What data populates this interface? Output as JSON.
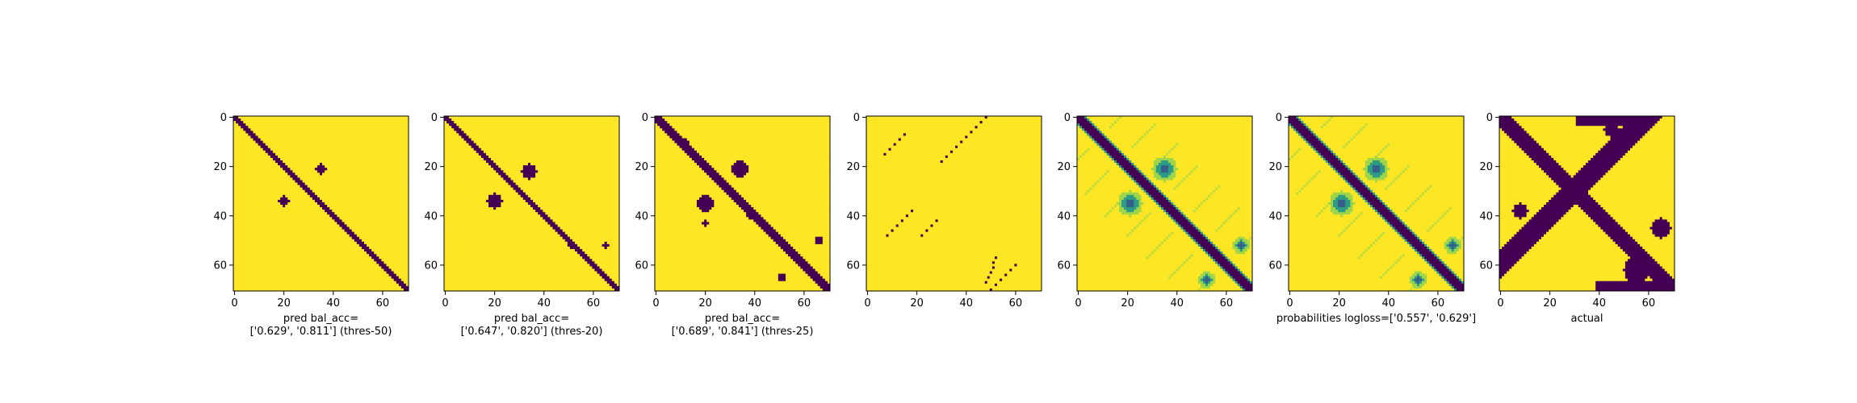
{
  "colors": {
    "background": "#ffffff",
    "colormap": "viridis",
    "low": "#440154",
    "high": "#fde725",
    "axes": "#000000"
  },
  "chart_data": [
    {
      "type": "heatmap",
      "colormap": "viridis",
      "grid": false,
      "matrix_size": 71,
      "xticks": [
        0,
        20,
        40,
        60
      ],
      "yticks": [
        0,
        20,
        40,
        60
      ],
      "xlim": [
        0,
        70
      ],
      "ylim": [
        70,
        0
      ],
      "xlabel_lines": [
        "pred bal_acc=",
        "['0.629', '0.811'] (thres-50)"
      ],
      "values": {
        "kind": "binary",
        "diagonal_halfwidth": 1.3,
        "blobs": [
          [
            34,
            20,
            2
          ],
          [
            21,
            35,
            2
          ]
        ]
      }
    },
    {
      "type": "heatmap",
      "colormap": "viridis",
      "grid": false,
      "matrix_size": 71,
      "xticks": [
        0,
        20,
        40,
        60
      ],
      "yticks": [
        0,
        20,
        40,
        60
      ],
      "xlim": [
        0,
        70
      ],
      "ylim": [
        70,
        0
      ],
      "xlabel_lines": [
        "pred bal_acc=",
        "['0.647', '0.820'] (thres-20)"
      ],
      "values": {
        "kind": "binary",
        "diagonal_halfwidth": 1.6,
        "blobs": [
          [
            34,
            20,
            3
          ],
          [
            22,
            34,
            3
          ],
          [
            52,
            51,
            1
          ],
          [
            52,
            65,
            1
          ]
        ]
      }
    },
    {
      "type": "heatmap",
      "colormap": "viridis",
      "grid": false,
      "matrix_size": 71,
      "xticks": [
        0,
        20,
        40,
        60
      ],
      "yticks": [
        0,
        20,
        40,
        60
      ],
      "xlim": [
        0,
        70
      ],
      "ylim": [
        70,
        0
      ],
      "xlabel_lines": [
        "pred bal_acc=",
        "['0.689', '0.841'] (thres-25)"
      ],
      "values": {
        "kind": "binary",
        "diagonal_halfwidth": 2.0,
        "blobs": [
          [
            35,
            20,
            3.5
          ],
          [
            21,
            34,
            3.5
          ],
          [
            65,
            51,
            1.5
          ],
          [
            50,
            66,
            1.5
          ],
          [
            40,
            38,
            1
          ],
          [
            10,
            12,
            1
          ],
          [
            43,
            20,
            1
          ]
        ]
      }
    },
    {
      "type": "heatmap",
      "colormap": "viridis",
      "grid": false,
      "matrix_size": 71,
      "xticks": [
        0,
        20,
        40,
        60
      ],
      "yticks": [
        0,
        20,
        40,
        60
      ],
      "xlim": [
        0,
        70
      ],
      "ylim": [
        70,
        0
      ],
      "xlabel_lines": [],
      "values": {
        "kind": "antidiagonals",
        "segments": [
          [
            0,
            48,
            8,
            40
          ],
          [
            7,
            15,
            15,
            7
          ],
          [
            38,
            18,
            48,
            8
          ],
          [
            42,
            28,
            48,
            22
          ],
          [
            57,
            52,
            68,
            48
          ],
          [
            70,
            50,
            60,
            60
          ],
          [
            10,
            38,
            18,
            30
          ]
        ]
      }
    },
    {
      "type": "heatmap",
      "colormap": "viridis",
      "grid": false,
      "matrix_size": 71,
      "xticks": [
        0,
        20,
        40,
        60
      ],
      "yticks": [
        0,
        20,
        40,
        60
      ],
      "xlim": [
        0,
        70
      ],
      "ylim": [
        70,
        0
      ],
      "xlabel_lines": [],
      "values": {
        "kind": "probabilities",
        "diagonal_halfwidth": 2.2,
        "blobs": [
          [
            35,
            21,
            3.5
          ],
          [
            21,
            35,
            3.5
          ],
          [
            52,
            66,
            2
          ],
          [
            66,
            52,
            2
          ]
        ]
      }
    },
    {
      "type": "heatmap",
      "colormap": "viridis",
      "grid": false,
      "matrix_size": 71,
      "xticks": [
        0,
        20,
        40,
        60
      ],
      "yticks": [
        0,
        20,
        40,
        60
      ],
      "xlim": [
        0,
        70
      ],
      "ylim": [
        70,
        0
      ],
      "xlabel_lines": [
        "probabilities logloss=['0.557', '0.629']"
      ],
      "values": {
        "kind": "probabilities",
        "diagonal_halfwidth": 2.2,
        "blobs": [
          [
            35,
            21,
            3.5
          ],
          [
            21,
            35,
            3.5
          ],
          [
            52,
            66,
            2
          ],
          [
            66,
            52,
            2
          ]
        ]
      }
    },
    {
      "type": "heatmap",
      "colormap": "viridis",
      "grid": false,
      "matrix_size": 71,
      "xticks": [
        0,
        20,
        40,
        60
      ],
      "yticks": [
        0,
        20,
        40,
        60
      ],
      "xlim": [
        0,
        70
      ],
      "ylim": [
        70,
        0
      ],
      "xlabel_lines": [
        "actual"
      ],
      "values": {
        "kind": "actual",
        "diagonal_halfwidth": 4,
        "antidiagonal_halfwidth": 4,
        "extra_blobs": [
          [
            62,
            55,
            5
          ],
          [
            45,
            65,
            4
          ],
          [
            8,
            50,
            3
          ],
          [
            5,
            45,
            3
          ],
          [
            38,
            8,
            3
          ]
        ]
      }
    }
  ]
}
